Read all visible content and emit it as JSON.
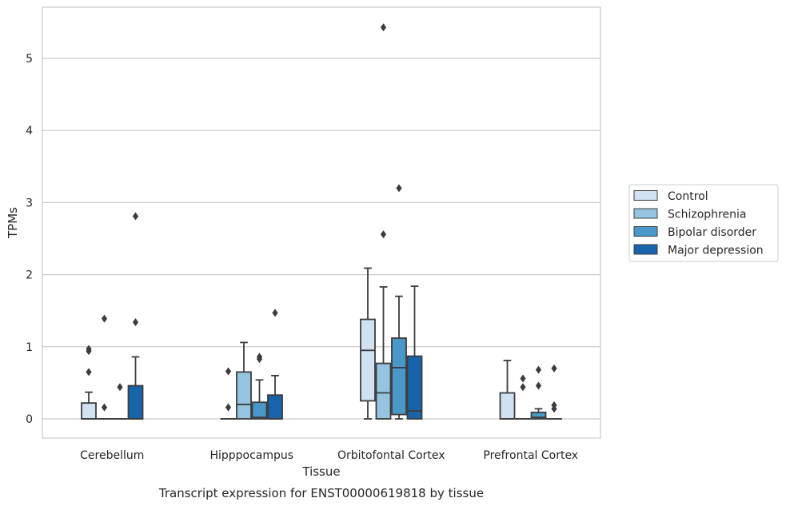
{
  "caption": "Transcript expression for ENST00000619818 by tissue",
  "chart_data": {
    "type": "box",
    "title": "",
    "xlabel": "Tissue",
    "ylabel": "TPMs",
    "ylim": [
      -0.27,
      5.72
    ],
    "yticks": [
      0,
      1,
      2,
      3,
      4,
      5
    ],
    "ytick_labels": [
      "0",
      "1",
      "2",
      "3",
      "4",
      "5"
    ],
    "categories": [
      "Cerebellum",
      "Hipppocampus",
      "Orbitofontal Cortex",
      "Prefrontal Cortex"
    ],
    "grid": "horizontal",
    "legend_position": "right",
    "series": [
      {
        "name": "Control",
        "color": "#d0e1f2",
        "boxes": [
          {
            "whisker_low": 0,
            "q1": 0,
            "median": 0,
            "q3": 0.22,
            "whisker_high": 0.37,
            "outliers": [
              0.65,
              0.94,
              0.97
            ]
          },
          {
            "whisker_low": 0,
            "q1": 0,
            "median": 0,
            "q3": 0,
            "whisker_high": 0,
            "outliers": [
              0.16,
              0.66
            ]
          },
          {
            "whisker_low": 0,
            "q1": 0.25,
            "median": 0.95,
            "q3": 1.38,
            "whisker_high": 2.09,
            "outliers": []
          },
          {
            "whisker_low": 0,
            "q1": 0,
            "median": 0,
            "q3": 0.36,
            "whisker_high": 0.81,
            "outliers": []
          }
        ]
      },
      {
        "name": "Schizophrenia",
        "color": "#94c4df",
        "boxes": [
          {
            "whisker_low": 0,
            "q1": 0,
            "median": 0,
            "q3": 0,
            "whisker_high": 0,
            "outliers": [
              0.16,
              1.39
            ]
          },
          {
            "whisker_low": 0,
            "q1": 0,
            "median": 0.2,
            "q3": 0.65,
            "whisker_high": 1.06,
            "outliers": []
          },
          {
            "whisker_low": 0,
            "q1": 0,
            "median": 0.36,
            "q3": 0.77,
            "whisker_high": 1.83,
            "outliers": [
              2.56,
              5.43
            ]
          },
          {
            "whisker_low": 0,
            "q1": 0,
            "median": 0,
            "q3": 0,
            "whisker_high": 0,
            "outliers": [
              0.44,
              0.56
            ]
          }
        ]
      },
      {
        "name": "Bipolar disorder",
        "color": "#4a98c9",
        "boxes": [
          {
            "whisker_low": 0,
            "q1": 0,
            "median": 0,
            "q3": 0,
            "whisker_high": 0,
            "outliers": [
              0.44
            ]
          },
          {
            "whisker_low": 0,
            "q1": 0,
            "median": 0.02,
            "q3": 0.23,
            "whisker_high": 0.54,
            "outliers": [
              0.83,
              0.86
            ]
          },
          {
            "whisker_low": 0,
            "q1": 0.06,
            "median": 0.71,
            "q3": 1.12,
            "whisker_high": 1.7,
            "outliers": [
              3.2
            ]
          },
          {
            "whisker_low": 0,
            "q1": 0,
            "median": 0.02,
            "q3": 0.09,
            "whisker_high": 0.14,
            "outliers": [
              0.46,
              0.68
            ]
          }
        ]
      },
      {
        "name": "Major depression",
        "color": "#1764ab",
        "boxes": [
          {
            "whisker_low": 0,
            "q1": 0,
            "median": 0,
            "q3": 0.46,
            "whisker_high": 0.86,
            "outliers": [
              1.34,
              2.81
            ]
          },
          {
            "whisker_low": 0,
            "q1": 0,
            "median": 0,
            "q3": 0.33,
            "whisker_high": 0.6,
            "outliers": [
              1.47
            ]
          },
          {
            "whisker_low": 0,
            "q1": 0,
            "median": 0.11,
            "q3": 0.87,
            "whisker_high": 1.84,
            "outliers": []
          },
          {
            "whisker_low": 0,
            "q1": 0,
            "median": 0,
            "q3": 0,
            "whisker_high": 0,
            "outliers": [
              0.14,
              0.19,
              0.7
            ]
          }
        ]
      }
    ]
  },
  "colors": {
    "edge": "#3c3c3c",
    "grid": "#cccccc",
    "frame": "#cccccc",
    "text": "#262626"
  }
}
